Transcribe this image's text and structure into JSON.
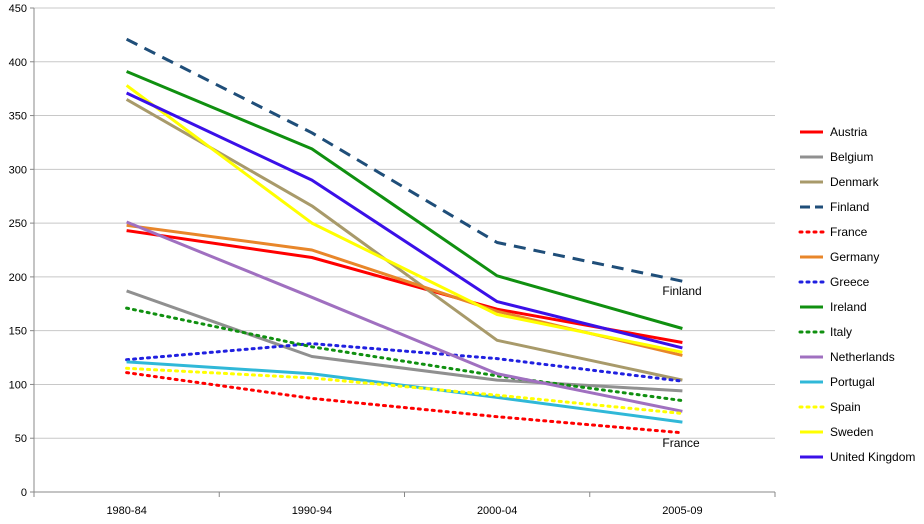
{
  "chart_data": {
    "type": "line",
    "title": "",
    "xlabel": "",
    "ylabel": "",
    "categories": [
      "1980-84",
      "1990-94",
      "2000-04",
      "2005-09"
    ],
    "ylim": [
      0,
      450
    ],
    "yticks": [
      0,
      50,
      100,
      150,
      200,
      250,
      300,
      350,
      400,
      450
    ],
    "grid": "horizontal",
    "legend_position": "right",
    "series": [
      {
        "name": "Austria",
        "values": [
          243,
          218,
          170,
          139
        ],
        "color": "#ff0000",
        "style": "solid"
      },
      {
        "name": "Belgium",
        "values": [
          187,
          126,
          104,
          94
        ],
        "color": "#909090",
        "style": "solid"
      },
      {
        "name": "Denmark",
        "values": [
          365,
          266,
          141,
          104
        ],
        "color": "#a89a6a",
        "style": "solid"
      },
      {
        "name": "Finland",
        "values": [
          421,
          334,
          232,
          196
        ],
        "color": "#1f4e79",
        "style": "dashed"
      },
      {
        "name": "France",
        "values": [
          111,
          87,
          70,
          55
        ],
        "color": "#ff0000",
        "style": "dotted"
      },
      {
        "name": "Germany",
        "values": [
          248,
          225,
          168,
          127
        ],
        "color": "#e8862a",
        "style": "solid"
      },
      {
        "name": "Greece",
        "values": [
          123,
          138,
          124,
          103
        ],
        "color": "#2020e0",
        "style": "dotted"
      },
      {
        "name": "Ireland",
        "values": [
          391,
          319,
          201,
          152
        ],
        "color": "#109010",
        "style": "solid"
      },
      {
        "name": "Italy",
        "values": [
          171,
          135,
          108,
          85
        ],
        "color": "#109010",
        "style": "dotted"
      },
      {
        "name": "Netherlands",
        "values": [
          251,
          181,
          110,
          75
        ],
        "color": "#a070c0",
        "style": "solid"
      },
      {
        "name": "Portugal",
        "values": [
          121,
          110,
          88,
          65
        ],
        "color": "#30b8d8",
        "style": "solid"
      },
      {
        "name": "Spain",
        "values": [
          115,
          106,
          90,
          73
        ],
        "color": "#ffff00",
        "style": "dotted"
      },
      {
        "name": "Sweden",
        "values": [
          378,
          250,
          165,
          130
        ],
        "color": "#ffff00",
        "style": "solid"
      },
      {
        "name": "United Kingdom",
        "values": [
          371,
          290,
          177,
          134
        ],
        "color": "#3a10e8",
        "style": "solid"
      }
    ],
    "annotations": [
      {
        "text": "Finland",
        "series": "Finland",
        "category": "2005-09"
      },
      {
        "text": "France",
        "series": "France",
        "category": "2005-09"
      }
    ]
  }
}
